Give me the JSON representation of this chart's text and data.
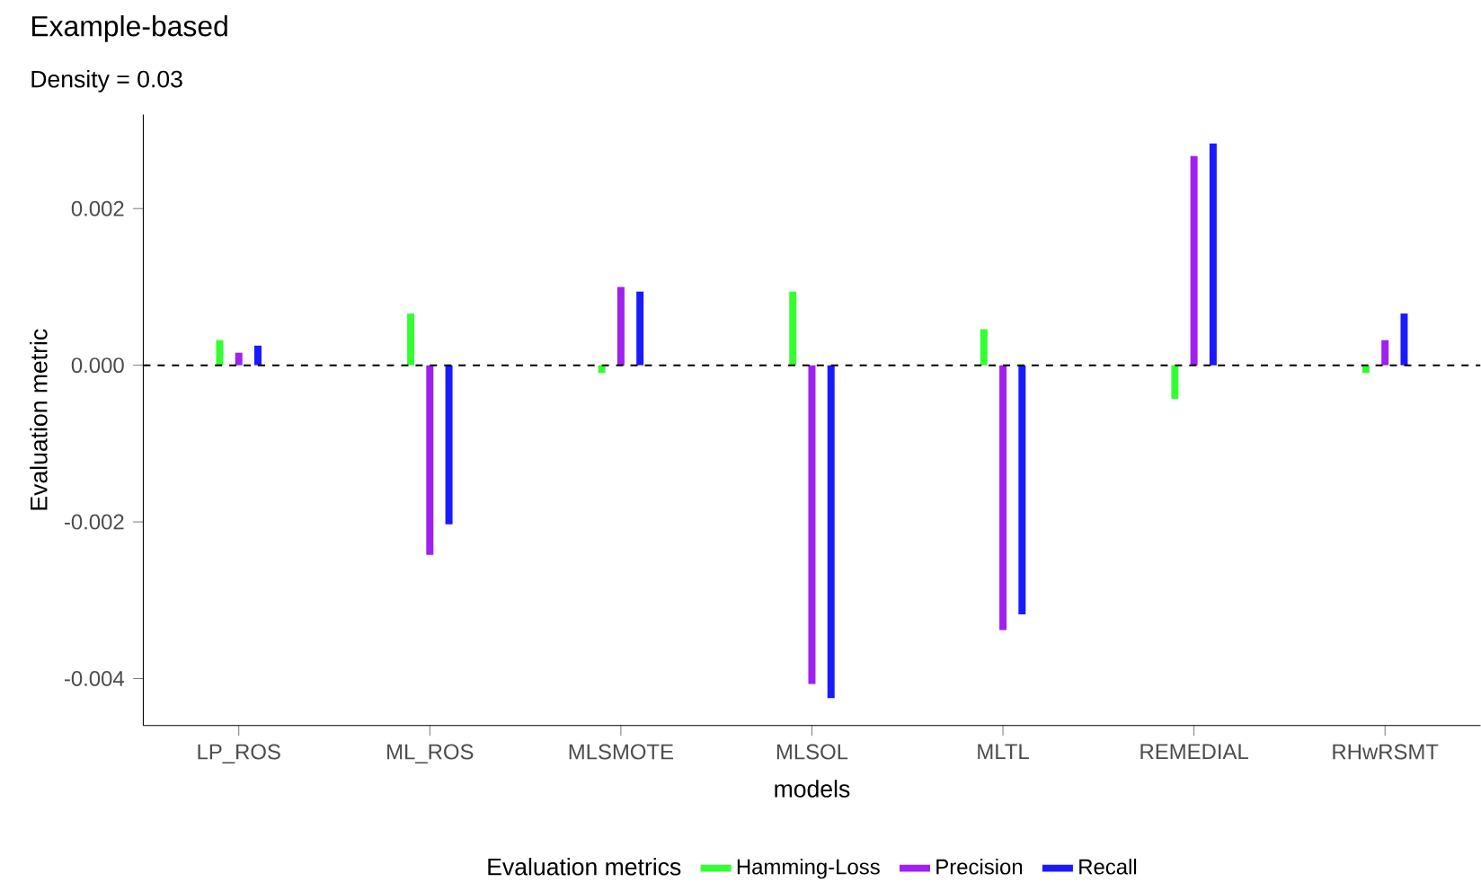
{
  "chart_data": {
    "type": "bar",
    "title": "Example-based",
    "subtitle": "Density =  0.03",
    "xlabel": "models",
    "ylabel": "Evaluation metric",
    "legend_title": "Evaluation metrics",
    "categories": [
      "LP_ROS",
      "ML_ROS",
      "MLSMOTE",
      "MLSOL",
      "MLTL",
      "REMEDIAL",
      "RHwRSMT"
    ],
    "series": [
      {
        "name": "Hamming-Loss",
        "color": "#33ff33",
        "values": [
          0.00032,
          0.00066,
          -0.0001,
          0.00094,
          0.00046,
          -0.00043,
          -0.0001
        ]
      },
      {
        "name": "Precision",
        "color": "#a020f0",
        "values": [
          0.00016,
          -0.00242,
          0.001,
          -0.00407,
          -0.00338,
          0.00267,
          0.00032
        ]
      },
      {
        "name": "Recall",
        "color": "#1a1aff",
        "values": [
          0.00025,
          -0.00203,
          0.00094,
          -0.00425,
          -0.00318,
          0.00283,
          0.00066
        ]
      }
    ],
    "ylim": [
      -0.0046,
      0.0032
    ],
    "yticks": [
      {
        "value": -0.004,
        "label": "-0.004"
      },
      {
        "value": -0.002,
        "label": "-0.002"
      },
      {
        "value": 0,
        "label": "0.000"
      },
      {
        "value": 0.002,
        "label": "0.002"
      }
    ],
    "ref_lines": [
      {
        "axis": "y",
        "value": 0,
        "label": null,
        "color": "#000000",
        "line_style": "dashed"
      }
    ],
    "grid": false,
    "legend": "bottom"
  }
}
